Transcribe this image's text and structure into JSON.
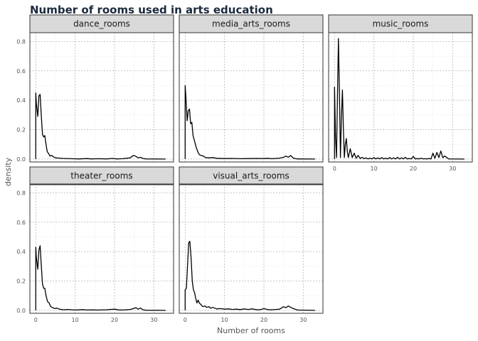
{
  "chart_data": {
    "type": "line",
    "title": "Number of rooms used in arts education",
    "xlabel": "Number of rooms",
    "ylabel": "density",
    "xlim": [
      -1.5,
      35
    ],
    "ylim": [
      -0.02,
      0.86
    ],
    "x_ticks": [
      0,
      10,
      20,
      30
    ],
    "y_ticks": [
      0.0,
      0.2,
      0.4,
      0.6,
      0.8
    ],
    "y_tick_labels": [
      "0.0",
      "0.2",
      "0.4",
      "0.6",
      "0.8"
    ],
    "grid": true,
    "panels": [
      {
        "name": "dance_rooms",
        "x": [
          0,
          0,
          0.15,
          0.5,
          0.8,
          1.1,
          1.4,
          1.7,
          2.0,
          2.3,
          2.6,
          2.9,
          3.2,
          3.6,
          4.0,
          4.5,
          5.0,
          6.0,
          7.0,
          9.0,
          11.0,
          13.0,
          14.0,
          16.0,
          18.0,
          19.5,
          20.5,
          22.0,
          24.0,
          24.8,
          25.3,
          26.0,
          26.6,
          27.2,
          28.0,
          33.0
        ],
        "y": [
          0,
          0.45,
          0.38,
          0.29,
          0.43,
          0.44,
          0.3,
          0.17,
          0.15,
          0.16,
          0.1,
          0.05,
          0.04,
          0.02,
          0.025,
          0.015,
          0.008,
          0.006,
          0.004,
          0.002,
          0.001,
          0.003,
          0.001,
          0.002,
          0.001,
          0.004,
          0.001,
          0.002,
          0.008,
          0.025,
          0.02,
          0.008,
          0.012,
          0.004,
          0.001,
          0
        ]
      },
      {
        "name": "media_arts_rooms",
        "x": [
          0,
          0,
          0.2,
          0.5,
          0.8,
          1.1,
          1.4,
          1.7,
          2.0,
          2.4,
          2.8,
          3.2,
          3.6,
          4.0,
          4.6,
          5.2,
          6.0,
          7.0,
          8.0,
          10.0,
          12.0,
          14.0,
          16.0,
          18.0,
          20.0,
          21.0,
          22.0,
          24.0,
          25.0,
          25.6,
          26.2,
          26.8,
          27.5,
          28.5,
          33.0
        ],
        "y": [
          0,
          0.5,
          0.42,
          0.26,
          0.33,
          0.34,
          0.24,
          0.25,
          0.16,
          0.12,
          0.08,
          0.05,
          0.03,
          0.025,
          0.02,
          0.01,
          0.008,
          0.01,
          0.005,
          0.003,
          0.004,
          0.002,
          0.003,
          0.004,
          0.003,
          0.005,
          0.002,
          0.006,
          0.012,
          0.02,
          0.012,
          0.024,
          0.006,
          0.001,
          0
        ]
      },
      {
        "name": "music_rooms",
        "x": [
          0,
          0,
          0.25,
          0.5,
          0.75,
          1.0,
          1.25,
          1.5,
          1.75,
          2.0,
          2.25,
          2.5,
          2.75,
          3.0,
          3.25,
          3.5,
          4.0,
          4.5,
          5.0,
          5.5,
          6.0,
          6.5,
          7.0,
          7.5,
          8.0,
          8.5,
          9.0,
          9.5,
          10.0,
          10.5,
          11.0,
          11.5,
          12.0,
          12.5,
          13.0,
          13.5,
          14.0,
          14.5,
          15.0,
          15.5,
          16.0,
          16.5,
          17.0,
          17.5,
          18.0,
          18.5,
          19.0,
          19.5,
          20.0,
          20.5,
          21.0,
          21.5,
          22.0,
          22.5,
          23.0,
          23.5,
          24.0,
          24.5,
          25.0,
          25.5,
          26.0,
          26.5,
          27.0,
          27.5,
          28.0,
          29.0,
          33.0
        ],
        "y": [
          0,
          0.49,
          0.15,
          0.01,
          0.45,
          0.82,
          0.45,
          0.01,
          0.28,
          0.47,
          0.2,
          0.01,
          0.1,
          0.14,
          0.05,
          0.01,
          0.07,
          0.01,
          0.04,
          0.005,
          0.025,
          0.003,
          0.012,
          0.002,
          0.008,
          0.001,
          0.006,
          0.001,
          0.01,
          0.001,
          0.008,
          0.001,
          0.01,
          0.001,
          0.006,
          0.001,
          0.01,
          0.001,
          0.008,
          0.001,
          0.012,
          0.001,
          0.008,
          0.001,
          0.012,
          0.001,
          0.004,
          0.001,
          0.018,
          0.001,
          0.003,
          0.001,
          0.006,
          0.001,
          0.002,
          0.001,
          0.004,
          0.001,
          0.04,
          0.005,
          0.045,
          0.01,
          0.055,
          0.01,
          0.02,
          0.001,
          0
        ]
      },
      {
        "name": "theater_rooms",
        "x": [
          0,
          0,
          0.15,
          0.5,
          0.8,
          1.1,
          1.4,
          1.7,
          2.0,
          2.3,
          2.6,
          3.0,
          3.4,
          3.8,
          4.2,
          4.8,
          5.4,
          6.0,
          7.0,
          8.0,
          10.0,
          12.0,
          13.0,
          14.0,
          16.0,
          18.0,
          20.0,
          21.0,
          22.0,
          24.0,
          24.8,
          25.4,
          26.0,
          26.6,
          27.2,
          28.0,
          33.0
        ],
        "y": [
          0,
          0.43,
          0.36,
          0.28,
          0.41,
          0.44,
          0.31,
          0.18,
          0.15,
          0.15,
          0.1,
          0.06,
          0.05,
          0.025,
          0.02,
          0.012,
          0.015,
          0.008,
          0.004,
          0.006,
          0.002,
          0.005,
          0.002,
          0.003,
          0.002,
          0.004,
          0.008,
          0.003,
          0.002,
          0.006,
          0.012,
          0.018,
          0.008,
          0.016,
          0.004,
          0.001,
          0
        ]
      },
      {
        "name": "visual_arts_rooms",
        "x": [
          0,
          0,
          0.3,
          0.6,
          0.9,
          1.2,
          1.5,
          1.8,
          2.1,
          2.4,
          2.7,
          3.0,
          3.3,
          3.6,
          4.0,
          4.5,
          5.0,
          5.5,
          6.0,
          6.5,
          7.0,
          8.0,
          9.0,
          10.0,
          11.0,
          12.0,
          13.0,
          14.0,
          15.0,
          16.0,
          17.0,
          18.0,
          19.0,
          20.0,
          21.0,
          22.0,
          23.0,
          24.0,
          25.0,
          25.6,
          26.2,
          26.8,
          27.5,
          28.5,
          33.0
        ],
        "y": [
          0,
          0.14,
          0.15,
          0.3,
          0.46,
          0.47,
          0.36,
          0.2,
          0.14,
          0.12,
          0.08,
          0.05,
          0.07,
          0.05,
          0.04,
          0.025,
          0.03,
          0.02,
          0.025,
          0.015,
          0.02,
          0.01,
          0.012,
          0.008,
          0.01,
          0.006,
          0.008,
          0.005,
          0.01,
          0.006,
          0.01,
          0.005,
          0.004,
          0.012,
          0.005,
          0.004,
          0.006,
          0.008,
          0.025,
          0.018,
          0.03,
          0.02,
          0.012,
          0.002,
          0
        ]
      }
    ]
  }
}
